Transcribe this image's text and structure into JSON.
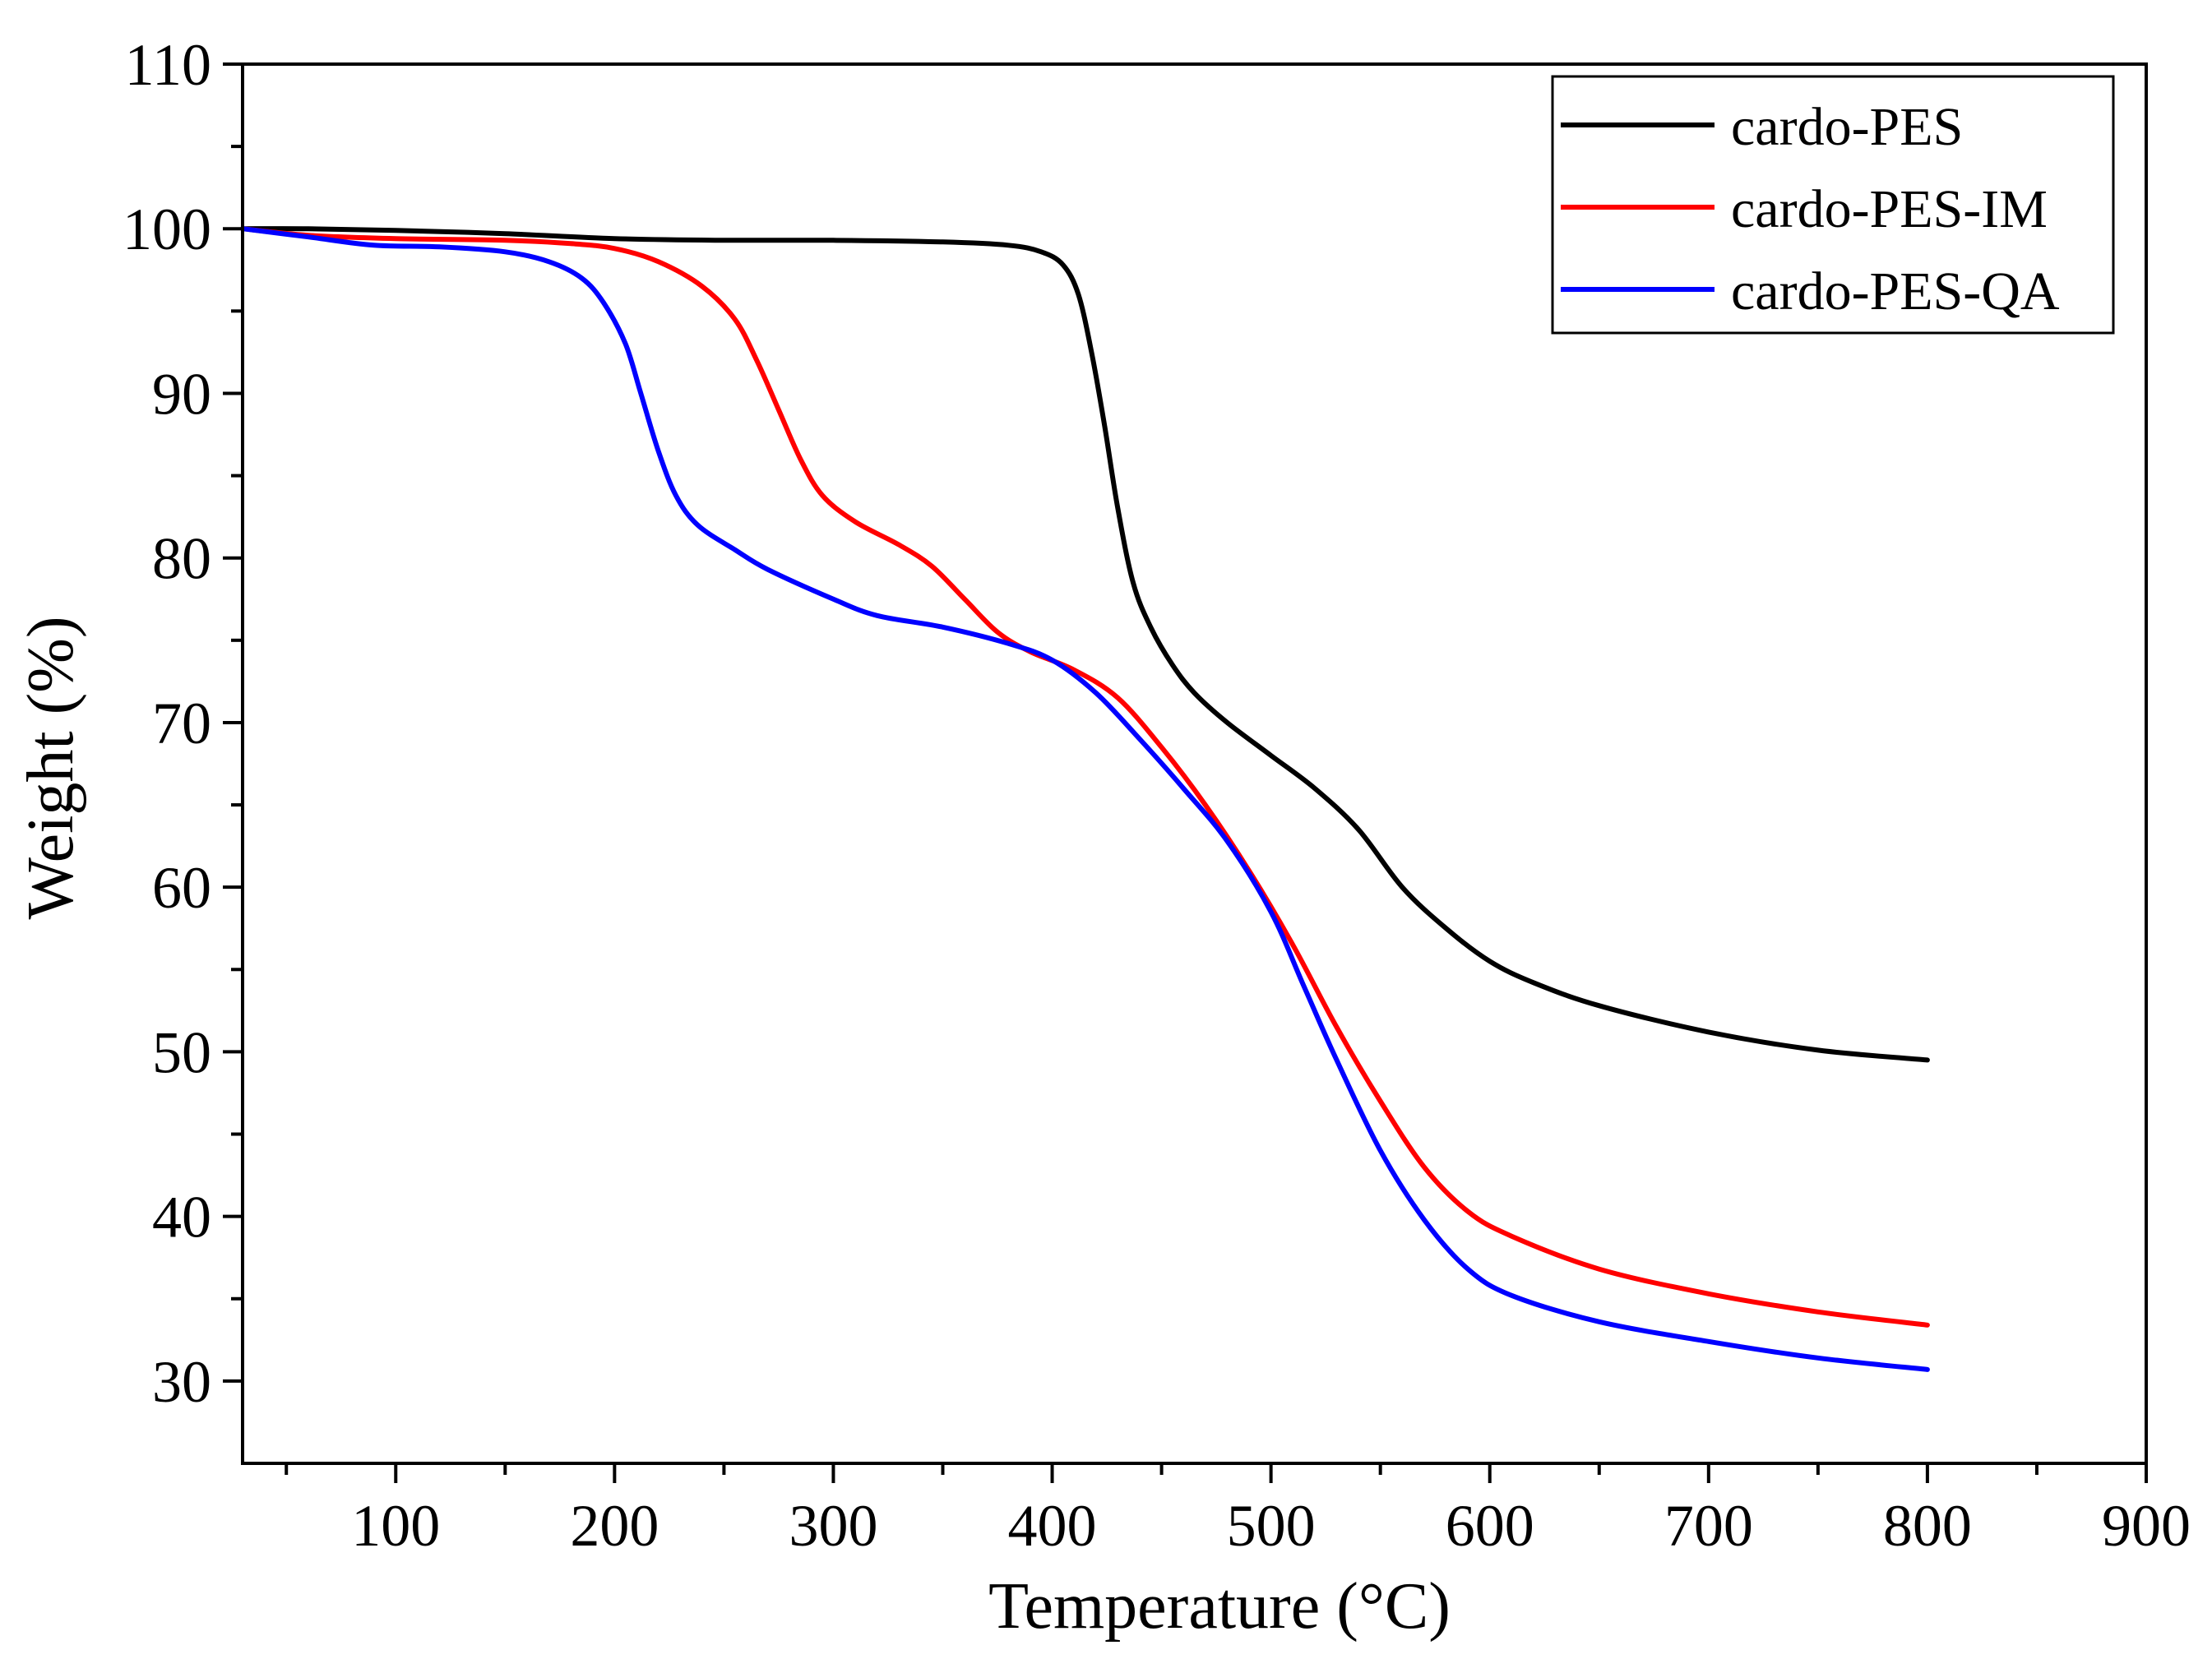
{
  "chart_data": {
    "type": "line",
    "title": "",
    "xlabel": "Temperature (°C)",
    "ylabel": "Weight (%)",
    "xlim": [
      30,
      900
    ],
    "ylim": [
      25,
      110
    ],
    "x_ticks": [
      100,
      200,
      300,
      400,
      500,
      600,
      700,
      800,
      900
    ],
    "y_ticks": [
      30,
      40,
      50,
      60,
      70,
      80,
      90,
      100,
      110
    ],
    "x_tick_labels": [
      "100",
      "200",
      "300",
      "400",
      "500",
      "600",
      "700",
      "800",
      "900"
    ],
    "y_tick_labels": [
      "30",
      "40",
      "50",
      "60",
      "70",
      "80",
      "90",
      "100",
      "110"
    ],
    "grid": false,
    "legend_position": "top-right",
    "series": [
      {
        "name": "cardo-PES",
        "color": "#000000",
        "points": [
          [
            30,
            100
          ],
          [
            60,
            100
          ],
          [
            100,
            99.9
          ],
          [
            150,
            99.7
          ],
          [
            200,
            99.4
          ],
          [
            250,
            99.3
          ],
          [
            300,
            99.3
          ],
          [
            350,
            99.2
          ],
          [
            380,
            99.0
          ],
          [
            395,
            98.6
          ],
          [
            405,
            97.8
          ],
          [
            412,
            96.0
          ],
          [
            418,
            92.5
          ],
          [
            424,
            88.0
          ],
          [
            430,
            83.0
          ],
          [
            437,
            78.5
          ],
          [
            445,
            75.8
          ],
          [
            455,
            73.5
          ],
          [
            465,
            71.8
          ],
          [
            480,
            70.0
          ],
          [
            500,
            68.0
          ],
          [
            520,
            66.0
          ],
          [
            540,
            63.5
          ],
          [
            560,
            60.0
          ],
          [
            580,
            57.5
          ],
          [
            600,
            55.5
          ],
          [
            620,
            54.2
          ],
          [
            650,
            52.8
          ],
          [
            700,
            51.2
          ],
          [
            750,
            50.1
          ],
          [
            800,
            49.5
          ]
        ]
      },
      {
        "name": "cardo-PES-IM",
        "color": "#ff0000",
        "points": [
          [
            30,
            100
          ],
          [
            60,
            99.6
          ],
          [
            100,
            99.4
          ],
          [
            150,
            99.3
          ],
          [
            180,
            99.1
          ],
          [
            200,
            98.8
          ],
          [
            220,
            98.0
          ],
          [
            240,
            96.5
          ],
          [
            255,
            94.5
          ],
          [
            265,
            92.0
          ],
          [
            275,
            89.0
          ],
          [
            285,
            86.0
          ],
          [
            295,
            83.8
          ],
          [
            310,
            82.2
          ],
          [
            330,
            80.8
          ],
          [
            345,
            79.5
          ],
          [
            360,
            77.5
          ],
          [
            375,
            75.5
          ],
          [
            390,
            74.3
          ],
          [
            410,
            73.2
          ],
          [
            430,
            71.5
          ],
          [
            450,
            68.5
          ],
          [
            470,
            65.0
          ],
          [
            490,
            61.0
          ],
          [
            510,
            56.5
          ],
          [
            530,
            51.5
          ],
          [
            550,
            47.0
          ],
          [
            570,
            43.0
          ],
          [
            590,
            40.3
          ],
          [
            610,
            38.8
          ],
          [
            650,
            36.8
          ],
          [
            700,
            35.3
          ],
          [
            750,
            34.2
          ],
          [
            800,
            33.4
          ]
        ]
      },
      {
        "name": "cardo-PES-QA",
        "color": "#0000ff",
        "points": [
          [
            30,
            100
          ],
          [
            60,
            99.5
          ],
          [
            90,
            99.0
          ],
          [
            120,
            98.9
          ],
          [
            150,
            98.6
          ],
          [
            170,
            98.0
          ],
          [
            185,
            97.0
          ],
          [
            195,
            95.5
          ],
          [
            205,
            93.0
          ],
          [
            212,
            90.0
          ],
          [
            220,
            86.5
          ],
          [
            228,
            83.8
          ],
          [
            238,
            82.0
          ],
          [
            255,
            80.5
          ],
          [
            270,
            79.3
          ],
          [
            300,
            77.5
          ],
          [
            320,
            76.5
          ],
          [
            350,
            75.8
          ],
          [
            380,
            74.8
          ],
          [
            400,
            73.8
          ],
          [
            420,
            71.8
          ],
          [
            440,
            69.0
          ],
          [
            460,
            66.0
          ],
          [
            480,
            62.8
          ],
          [
            500,
            58.5
          ],
          [
            515,
            54.0
          ],
          [
            530,
            49.5
          ],
          [
            550,
            44.0
          ],
          [
            570,
            39.8
          ],
          [
            590,
            36.8
          ],
          [
            610,
            35.2
          ],
          [
            650,
            33.6
          ],
          [
            700,
            32.4
          ],
          [
            750,
            31.4
          ],
          [
            800,
            30.7
          ]
        ]
      }
    ]
  }
}
